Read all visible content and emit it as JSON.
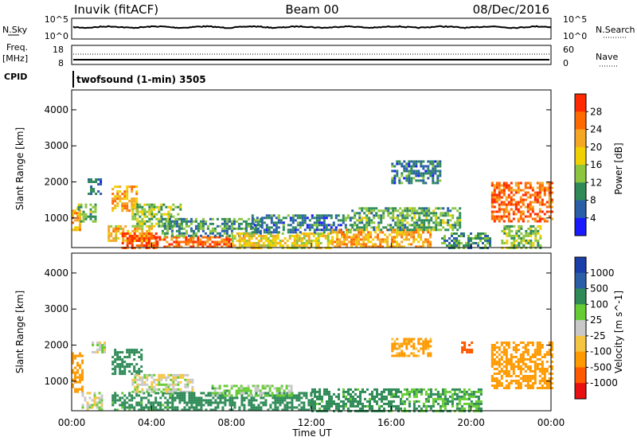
{
  "header": {
    "site": "Inuvik (fitACF)",
    "beam": "Beam 00",
    "date": "08/Dec/2016"
  },
  "program_label": "twofsound (1-min) 3505",
  "strips": {
    "nsky_label": "N.Sky",
    "nsky_ticks": [
      "10^5",
      "10^0"
    ],
    "nsearch_label": "N.Search",
    "nsearch_ticks": [
      "10^5",
      "10^0"
    ],
    "freq_label": "Freq.",
    "freq_unit": "[MHz]",
    "freq_ticks": [
      "18",
      "8"
    ],
    "nave_label": "Nave",
    "nave_ticks": [
      "60",
      "0"
    ],
    "cpid_label": "CPID"
  },
  "colors": {
    "power_scale": [
      "#1a1aff",
      "#2a5fa8",
      "#2e8b57",
      "#8cc63f",
      "#f0d000",
      "#f5a623",
      "#ff6a00",
      "#ff2a00"
    ],
    "velocity_scale": [
      "#e81010",
      "#ff5a00",
      "#ff9a00",
      "#f5c542",
      "#c8c8c8",
      "#66cc33",
      "#2e8b57",
      "#2a5fa8",
      "#1a3fa8"
    ]
  },
  "chart_data": [
    {
      "type": "heatmap",
      "name": "power",
      "xlabel": "",
      "ylabel": "Slant Range [km]",
      "x_range": [
        "00:00",
        "24:00"
      ],
      "ylim": [
        180,
        4550
      ],
      "yticks": [
        "1000",
        "2000",
        "3000",
        "4000"
      ],
      "colorbar_label": "Power [dB]",
      "colorbar_ticks": [
        "4",
        "8",
        "12",
        "16",
        "20",
        "24",
        "28"
      ],
      "clim": [
        0,
        30
      ],
      "regions": [
        {
          "t": [
            0.0,
            0.4
          ],
          "r": [
            700,
            1300
          ],
          "level": 22
        },
        {
          "t": [
            0.3,
            1.2
          ],
          "r": [
            900,
            1400
          ],
          "level": 12
        },
        {
          "t": [
            0.8,
            1.5
          ],
          "r": [
            1700,
            2100
          ],
          "level": 8
        },
        {
          "t": [
            1.8,
            4.0
          ],
          "r": [
            400,
            800
          ],
          "level": 20
        },
        {
          "t": [
            2.0,
            3.2
          ],
          "r": [
            1200,
            1900
          ],
          "level": 22
        },
        {
          "t": [
            2.5,
            4.2
          ],
          "r": [
            200,
            600
          ],
          "level": 28
        },
        {
          "t": [
            3.0,
            5.5
          ],
          "r": [
            800,
            1400
          ],
          "level": 14
        },
        {
          "t": [
            4.0,
            8.0
          ],
          "r": [
            200,
            500
          ],
          "level": 26
        },
        {
          "t": [
            4.5,
            9.5
          ],
          "r": [
            500,
            1000
          ],
          "level": 10
        },
        {
          "t": [
            8.0,
            13.0
          ],
          "r": [
            200,
            600
          ],
          "level": 18
        },
        {
          "t": [
            9.0,
            14.0
          ],
          "r": [
            600,
            1100
          ],
          "level": 8
        },
        {
          "t": [
            13.0,
            18.0
          ],
          "r": [
            200,
            700
          ],
          "level": 22
        },
        {
          "t": [
            14.0,
            19.5
          ],
          "r": [
            700,
            1300
          ],
          "level": 12
        },
        {
          "t": [
            16.0,
            18.5
          ],
          "r": [
            2000,
            2600
          ],
          "level": 8
        },
        {
          "t": [
            18.5,
            21.0
          ],
          "r": [
            200,
            600
          ],
          "level": 10
        },
        {
          "t": [
            21.0,
            24.0
          ],
          "r": [
            900,
            2000
          ],
          "level": 26
        },
        {
          "t": [
            21.5,
            23.5
          ],
          "r": [
            200,
            800
          ],
          "level": 14
        }
      ]
    },
    {
      "type": "heatmap",
      "name": "velocity",
      "xlabel": "Time UT",
      "ylabel": "Slant Range [km]",
      "x_range": [
        "00:00",
        "24:00"
      ],
      "xticks": [
        "00:00",
        "04:00",
        "08:00",
        "12:00",
        "16:00",
        "20:00",
        "00:00"
      ],
      "ylim": [
        180,
        4550
      ],
      "yticks": [
        "1000",
        "2000",
        "3000",
        "4000"
      ],
      "colorbar_label": "Velocity [m s^-1]",
      "colorbar_ticks": [
        "1000",
        "500",
        "100",
        "25",
        "-25",
        "-100",
        "-500",
        "-1000"
      ],
      "regions": [
        {
          "t": [
            0.0,
            0.5
          ],
          "r": [
            700,
            1800
          ],
          "level": -300
        },
        {
          "t": [
            0.5,
            1.5
          ],
          "r": [
            200,
            700
          ],
          "level": 0
        },
        {
          "t": [
            1.0,
            1.6
          ],
          "r": [
            1800,
            2100
          ],
          "level": 0
        },
        {
          "t": [
            2.0,
            3.5
          ],
          "r": [
            1200,
            1900
          ],
          "level": 300
        },
        {
          "t": [
            2.0,
            5.0
          ],
          "r": [
            200,
            700
          ],
          "level": 150
        },
        {
          "t": [
            3.0,
            6.0
          ],
          "r": [
            700,
            1200
          ],
          "level": 0
        },
        {
          "t": [
            5.0,
            12.0
          ],
          "r": [
            200,
            700
          ],
          "level": 200
        },
        {
          "t": [
            7.0,
            11.0
          ],
          "r": [
            600,
            900
          ],
          "level": 50
        },
        {
          "t": [
            12.0,
            16.5
          ],
          "r": [
            200,
            800
          ],
          "level": 150
        },
        {
          "t": [
            16.0,
            18.0
          ],
          "r": [
            1700,
            2200
          ],
          "level": -150
        },
        {
          "t": [
            16.5,
            20.5
          ],
          "r": [
            200,
            800
          ],
          "level": 100
        },
        {
          "t": [
            19.5,
            20.0
          ],
          "r": [
            1800,
            2100
          ],
          "level": -800
        },
        {
          "t": [
            21.0,
            24.0
          ],
          "r": [
            800,
            2100
          ],
          "level": -300
        }
      ]
    }
  ]
}
